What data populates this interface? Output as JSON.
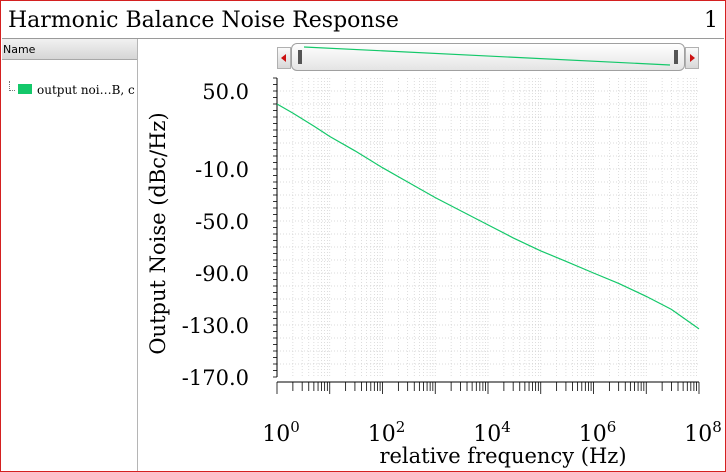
{
  "window": {
    "title": "Harmonic Balance Noise Response",
    "page": "1"
  },
  "sidebar": {
    "header": "Name",
    "items": [
      {
        "label": "output noi…B, c",
        "color": "#14c86a"
      }
    ]
  },
  "chart_data": {
    "type": "line",
    "xscale": "log",
    "xlabel": "relative frequency (Hz)",
    "ylabel": "Output Noise (dBc/Hz)",
    "xlim": [
      1,
      100000000
    ],
    "ylim": [
      -170,
      60
    ],
    "yticks": [
      50,
      -10,
      -50,
      -90,
      -130,
      -170
    ],
    "ytick_labels": [
      "50.0",
      "-10.0",
      "-50.0",
      "-90.0",
      "-130.0",
      "-170.0"
    ],
    "xticks": [
      {
        "base": "10",
        "exp": "0"
      },
      {
        "base": "10",
        "exp": "2"
      },
      {
        "base": "10",
        "exp": "4"
      },
      {
        "base": "10",
        "exp": "6"
      },
      {
        "base": "10",
        "exp": "8"
      }
    ],
    "grid": true,
    "series": [
      {
        "color": "#14c86a",
        "x": [
          1,
          2,
          5,
          10,
          30,
          100,
          300,
          1000,
          3000,
          10000,
          30000,
          100000,
          300000,
          1000000,
          3000000,
          10000000,
          30000000,
          100000000
        ],
        "y": [
          40,
          33,
          23,
          15,
          4,
          -9,
          -20,
          -32,
          -42,
          -53,
          -63,
          -73,
          -81,
          -90,
          -98,
          -108,
          -118,
          -133
        ]
      }
    ]
  }
}
